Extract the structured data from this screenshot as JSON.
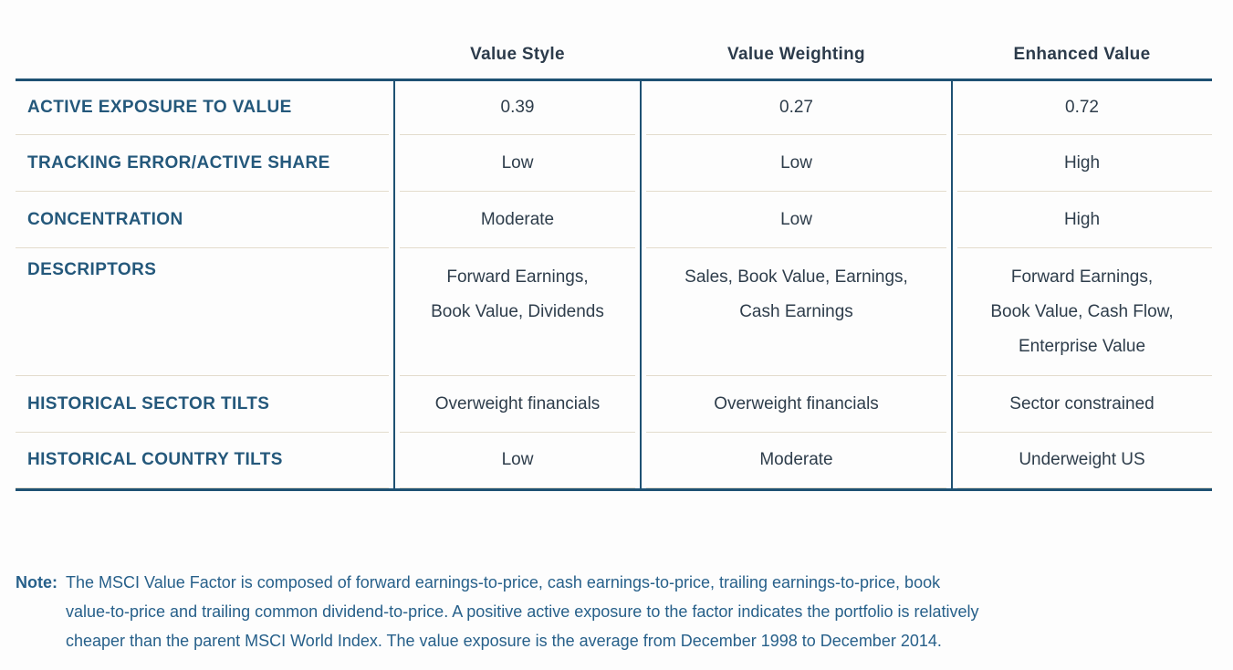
{
  "table": {
    "columns": [
      "Value Style",
      "Value Weighting",
      "Enhanced Value"
    ],
    "rows": [
      {
        "label": "ACTIVE EXPOSURE TO VALUE",
        "values": [
          "0.39",
          "0.27",
          "0.72"
        ]
      },
      {
        "label": "TRACKING ERROR/ACTIVE SHARE",
        "values": [
          "Low",
          "Low",
          "High"
        ]
      },
      {
        "label": "CONCENTRATION",
        "values": [
          "Moderate",
          "Low",
          "High"
        ]
      },
      {
        "label": "DESCRIPTORS",
        "values": [
          "Forward Earnings,\nBook Value, Dividends",
          "Sales, Book Value, Earnings,\nCash Earnings",
          "Forward Earnings,\nBook Value, Cash Flow,\nEnterprise Value"
        ]
      },
      {
        "label": "HISTORICAL SECTOR TILTS",
        "values": [
          "Overweight financials",
          "Overweight financials",
          "Sector constrained"
        ]
      },
      {
        "label": "HISTORICAL COUNTRY TILTS",
        "values": [
          "Low",
          "Moderate",
          "Underweight US"
        ]
      }
    ]
  },
  "note": {
    "label": "Note:",
    "text": "The MSCI Value Factor is composed of forward earnings-to-price, cash earnings-to-price, trailing earnings-to-price, book\nvalue-to-price and trailing common dividend-to-price. A positive active exposure to the factor indicates the portfolio is relatively\ncheaper than the parent MSCI World Index. The value exposure is the average from December 1998 to December 2014."
  },
  "colors": {
    "border_navy": "#1e5173",
    "label_steel_blue": "#24587b",
    "cell_text": "#2e3d4b",
    "row_separator_tan": "#e3dccd",
    "note_blue": "#27608a"
  }
}
